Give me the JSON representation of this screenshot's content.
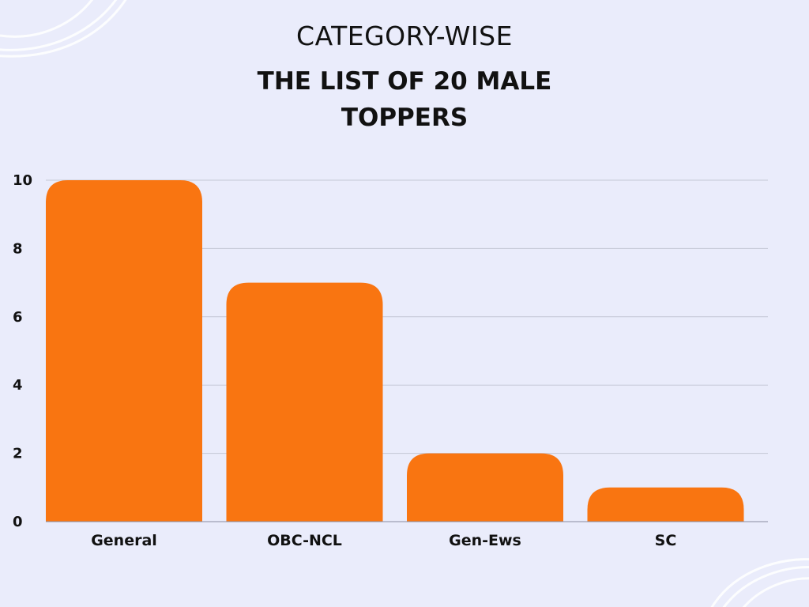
{
  "chart_data": {
    "type": "bar",
    "title_line1": "CATEGORY-WISE",
    "title": "THE LIST OF 20 MALE TOPPERS",
    "categories": [
      "General",
      "OBC-NCL",
      "Gen-Ews",
      "SC"
    ],
    "values": [
      10,
      7,
      2,
      1
    ],
    "yticks": [
      0,
      2,
      4,
      6,
      8,
      10
    ],
    "ylim": [
      0,
      10
    ],
    "grid": true,
    "bar_color": "#f97511"
  }
}
